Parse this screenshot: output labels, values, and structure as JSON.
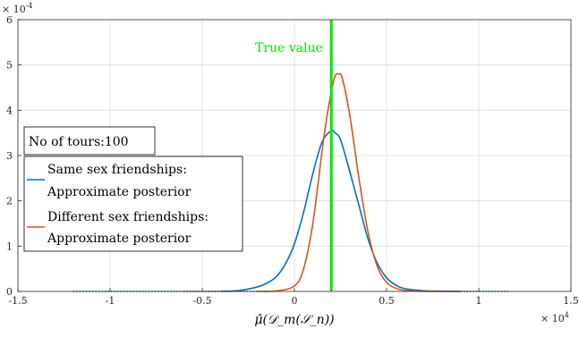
{
  "chart_data": {
    "type": "line",
    "title": "",
    "xlabel": "μ̂(𝒟_m(𝒮_n))",
    "ylabel": "",
    "x_exponent_label": "× 10",
    "x_exponent_power": "4",
    "y_exponent_label": "× 10",
    "y_exponent_power": "-4",
    "xlim": [
      -1.5,
      1.5
    ],
    "ylim": [
      0,
      6
    ],
    "xticks": [
      -1.5,
      -1,
      -0.5,
      0,
      0.5,
      1,
      1.5
    ],
    "xtick_labels": [
      "-1.5",
      "-1",
      "-0.5",
      "0",
      "0.5",
      "1",
      "1.5"
    ],
    "yticks": [
      0,
      1,
      2,
      3,
      4,
      5,
      6
    ],
    "ytick_labels": [
      "0",
      "1",
      "2",
      "3",
      "4",
      "5",
      "6"
    ],
    "grid": true,
    "legend_position": "middle-left",
    "info_box": "No of tours:100",
    "annotations": [
      {
        "text": "True value",
        "x": 0.2,
        "color": "#00e600"
      }
    ],
    "series": [
      {
        "name": "Same sex friendships: Approximate posterior",
        "legend_lines": [
          "Same sex friendships:",
          "Approximate posterior"
        ],
        "color": "#0072bd",
        "dotted_x_range": [
          -1.2,
          1.16
        ],
        "x": [
          -0.4,
          -0.3,
          -0.2,
          -0.15,
          -0.1,
          -0.05,
          0,
          0.05,
          0.1,
          0.15,
          0.2,
          0.22,
          0.25,
          0.3,
          0.35,
          0.4,
          0.45,
          0.5,
          0.55,
          0.6,
          0.7,
          0.8,
          0.9
        ],
        "y": [
          0.003,
          0.02,
          0.1,
          0.18,
          0.32,
          0.6,
          1.05,
          1.75,
          2.6,
          3.3,
          3.55,
          3.5,
          3.35,
          2.65,
          1.9,
          1.15,
          0.62,
          0.3,
          0.14,
          0.06,
          0.015,
          0.004,
          0.001
        ]
      },
      {
        "name": "Different sex friendships: Approximate posterior",
        "legend_lines": [
          "Different sex friendships:",
          "Approximate posterior"
        ],
        "color": "#d95319",
        "dotted_x_range": [
          -0.6,
          0.95
        ],
        "x": [
          -0.2,
          -0.1,
          0,
          0.05,
          0.1,
          0.15,
          0.18,
          0.2,
          0.22,
          0.24,
          0.26,
          0.3,
          0.35,
          0.4,
          0.45,
          0.5,
          0.55,
          0.6,
          0.7,
          0.8
        ],
        "y": [
          0.001,
          0.01,
          0.12,
          0.5,
          1.5,
          3.1,
          3.95,
          4.4,
          4.75,
          4.8,
          4.7,
          3.9,
          2.5,
          1.3,
          0.55,
          0.2,
          0.07,
          0.02,
          0.003,
          0.001
        ]
      }
    ],
    "vertical_line": {
      "x": 0.2,
      "color": "#00e600"
    }
  }
}
